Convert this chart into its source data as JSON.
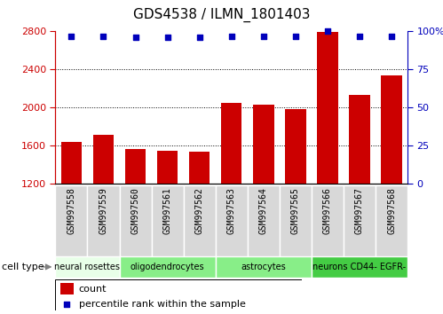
{
  "title": "GDS4538 / ILMN_1801403",
  "samples": [
    "GSM997558",
    "GSM997559",
    "GSM997560",
    "GSM997561",
    "GSM997562",
    "GSM997563",
    "GSM997564",
    "GSM997565",
    "GSM997566",
    "GSM997567",
    "GSM997568"
  ],
  "counts": [
    1635,
    1710,
    1560,
    1550,
    1535,
    2050,
    2030,
    1980,
    2790,
    2130,
    2340
  ],
  "percentile_ranks": [
    97,
    97,
    96,
    96,
    96,
    97,
    97,
    97,
    100,
    97,
    97
  ],
  "ylim_left": [
    1200,
    2800
  ],
  "ylim_right": [
    0,
    100
  ],
  "yticks_left": [
    1200,
    1600,
    2000,
    2400,
    2800
  ],
  "yticks_right": [
    0,
    25,
    50,
    75,
    100
  ],
  "bar_color": "#cc0000",
  "dot_color": "#0000bb",
  "cell_types": [
    {
      "label": "neural rosettes",
      "start": 0,
      "end": 2,
      "color": "#e8ffe8"
    },
    {
      "label": "oligodendrocytes",
      "start": 2,
      "end": 5,
      "color": "#88ee88"
    },
    {
      "label": "astrocytes",
      "start": 5,
      "end": 8,
      "color": "#88ee88"
    },
    {
      "label": "neurons CD44- EGFR-",
      "start": 8,
      "end": 11,
      "color": "#44cc44"
    }
  ],
  "legend_count_label": "count",
  "legend_pct_label": "percentile rank within the sample",
  "cell_type_label": "cell type",
  "tick_color_left": "#cc0000",
  "tick_color_right": "#0000bb",
  "sample_bg_color": "#d8d8d8",
  "spine_color": "#000000"
}
